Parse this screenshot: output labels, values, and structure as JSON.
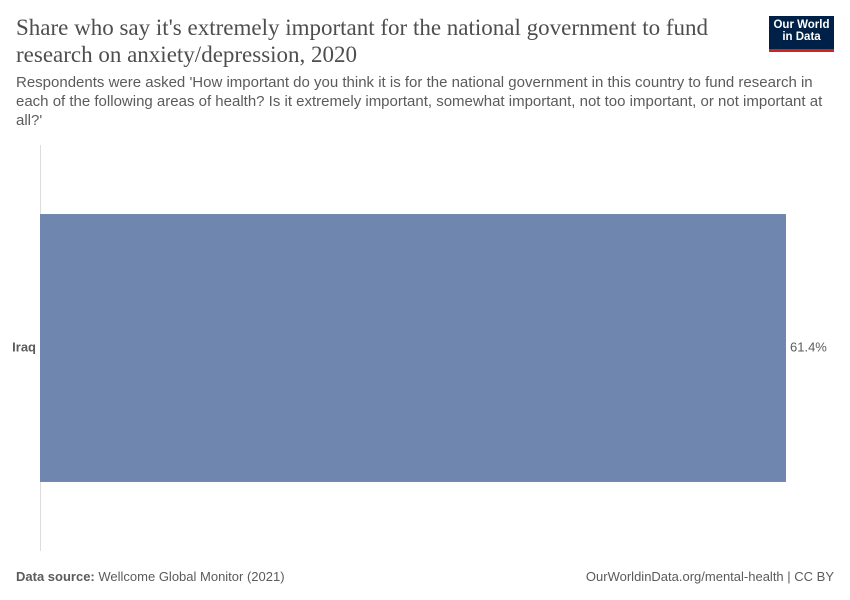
{
  "chart_data": {
    "type": "bar",
    "orientation": "horizontal",
    "title": "Share who say it's extremely important for the national government to fund research on anxiety/depression, 2020",
    "subtitle": "Respondents were asked 'How important do you think it is for the national government in this country to fund research in each of the following areas of health? Is it extremely important, somewhat important, not too important, or not important at all?'",
    "categories": [
      "Iraq"
    ],
    "values": [
      61.4
    ],
    "value_labels": [
      "61.4%"
    ],
    "color": "#6f87af"
  },
  "logo": {
    "line1": "Our World",
    "line2": "in Data"
  },
  "footer": {
    "source_label": "Data source:",
    "source": "Wellcome Global Monitor (2021)",
    "url": "OurWorldinData.org/mental-health | CC BY"
  }
}
